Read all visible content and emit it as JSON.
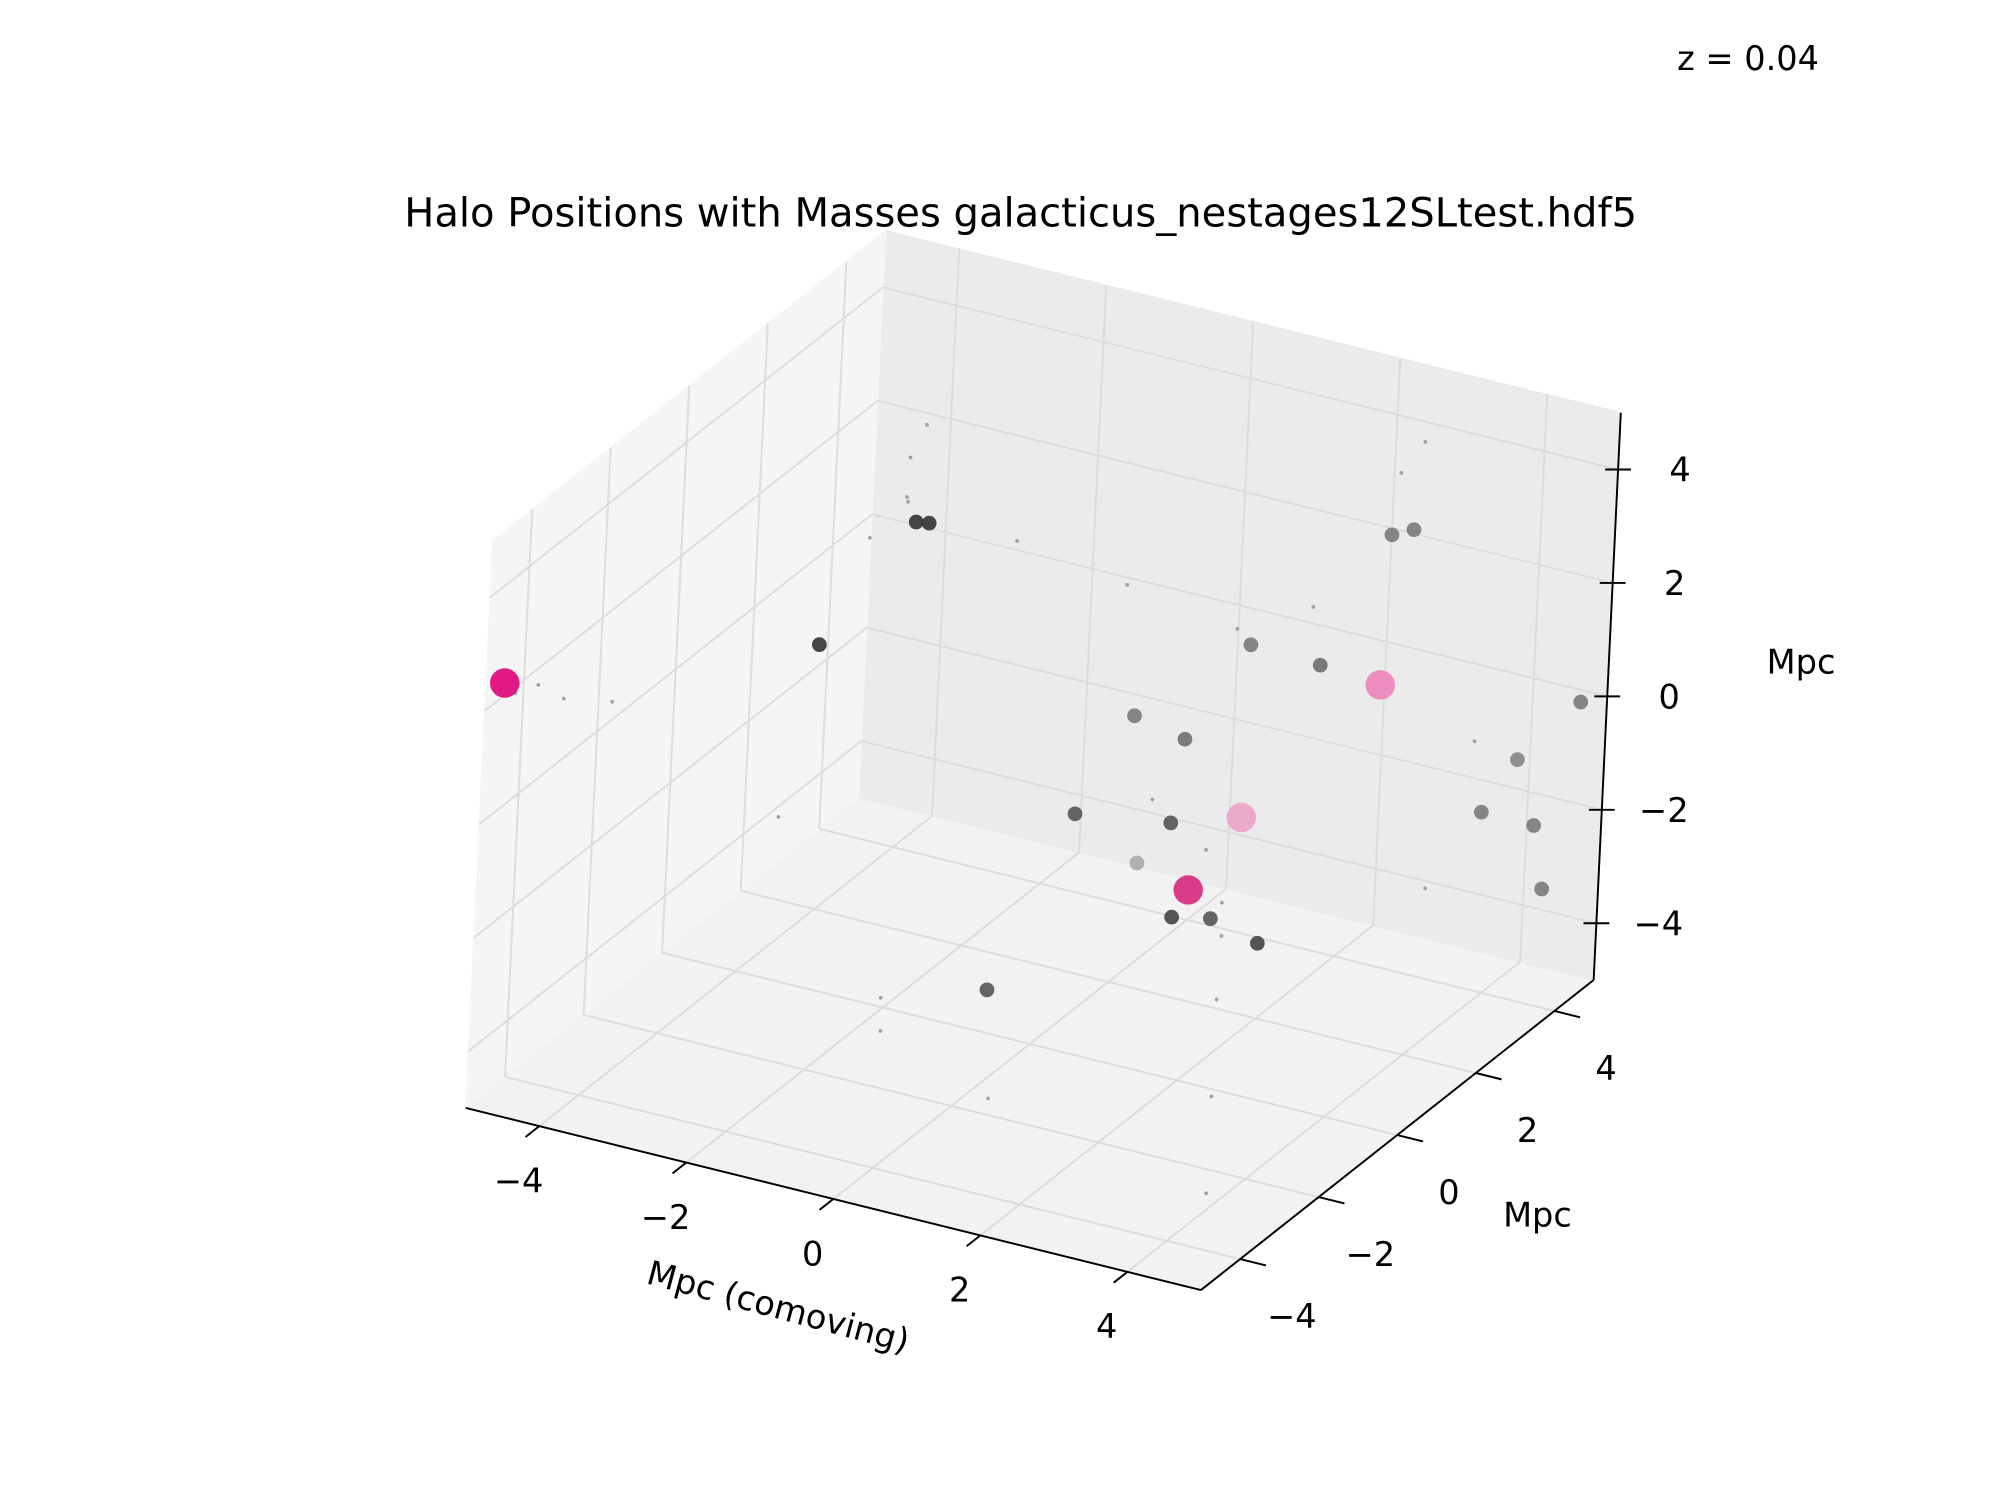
{
  "chart_data": {
    "type": "scatter3d",
    "title": "Halo Positions with Masses galacticus_nestages12SLtest.hdf5",
    "annotation": "z = 0.04",
    "xlabel": "Mpc (comoving)",
    "ylabel": "Mpc",
    "zlabel": "Mpc",
    "xlim": [
      -5,
      5
    ],
    "ylim": [
      -5,
      5
    ],
    "zlim": [
      -5,
      5
    ],
    "xticks": [
      {
        "value": -4,
        "label": "−4"
      },
      {
        "value": -2,
        "label": "−2"
      },
      0,
      2,
      4
    ],
    "yticks": [
      {
        "value": -4,
        "label": "−4"
      },
      {
        "value": -2,
        "label": "−2"
      },
      0,
      2,
      4
    ],
    "zticks": [
      {
        "value": -4,
        "label": "−4"
      },
      {
        "value": -2,
        "label": "−2"
      },
      0,
      2,
      4
    ],
    "grid": true,
    "series": [
      {
        "x": [
          -4.7,
          -4.5,
          -4.2,
          -3.8,
          -3,
          -3.2,
          -3.1,
          -2,
          -1,
          0,
          1,
          2,
          2.5,
          3,
          3.5,
          4,
          4.5,
          1.5,
          2.8,
          3,
          -2,
          0,
          -4,
          1,
          3.5,
          -1,
          2,
          4.2,
          2.8,
          2.96,
          1.35,
          1.62,
          0.36,
          1.19,
          4.8,
          4.9,
          4.5,
          4.5,
          4.7,
          1.03,
          2.14,
          1.6,
          2.67,
          3.09,
          3.9,
          0.28,
          -3.01,
          -2.86,
          -3.12,
          2.5,
          2.8,
          3.2,
          -4.8
        ],
        "y": [
          -4.8,
          -4.6,
          -4.5,
          -4,
          2,
          2.4,
          2.6,
          0,
          1,
          2,
          3,
          -1,
          -0.5,
          -1,
          -2,
          -3,
          -4,
          4,
          3.6,
          3.8,
          -3,
          -4,
          3,
          -3,
          4.5,
          -2,
          1,
          2,
          3.43,
          3.69,
          2.69,
          4.02,
          1.65,
          1.38,
          4.7,
          2.9,
          2.8,
          4.2,
          4.1,
          -1.12,
          -0.76,
          -0.54,
          -1.66,
          -1.46,
          -1.78,
          -1.75,
          2.26,
          2.31,
          0.07,
          3.9,
          -0.2,
          -2.3,
          -4.9
        ],
        "z": [
          2.3,
          2.4,
          2.2,
          2,
          2.5,
          3,
          3.5,
          4,
          3,
          2,
          1,
          0.5,
          -0.5,
          -1,
          -2,
          -3,
          -4,
          1,
          4,
          4.5,
          0,
          -2,
          1,
          -4,
          -1,
          -4,
          -3,
          -2,
          3,
          3,
          1,
          0,
          0,
          0,
          0,
          0,
          -1,
          -2,
          -3,
          0,
          0,
          -1,
          -1,
          -1,
          -1,
          -3,
          2,
          2,
          1,
          0,
          0,
          0,
          2.5
        ],
        "sizes": [
          3,
          3,
          3,
          3,
          3,
          3,
          3,
          3,
          3,
          3,
          3,
          3,
          3,
          3,
          3,
          3,
          3,
          3,
          3,
          3,
          3,
          3,
          3,
          3,
          3,
          3,
          3,
          3,
          45,
          45,
          45,
          45,
          45,
          45,
          45,
          45,
          45,
          45,
          45,
          45,
          45,
          45,
          45,
          45,
          45,
          45,
          45,
          45,
          45,
          180,
          180,
          180,
          180
        ],
        "colors": [
          "#999999",
          "#999999",
          "#999999",
          "#999999",
          "#999999",
          "#999999",
          "#999999",
          "#999999",
          "#999999",
          "#999999",
          "#999999",
          "#999999",
          "#999999",
          "#999999",
          "#999999",
          "#999999",
          "#999999",
          "#999999",
          "#999999",
          "#999999",
          "#999999",
          "#999999",
          "#999999",
          "#999999",
          "#999999",
          "#999999",
          "#999999",
          "#999999",
          "#7a7a7a",
          "#7a7a7a",
          "#7a7a7a",
          "#6e6e6e",
          "#7a7a7a",
          "#6e6e6e",
          "#7a7a7a",
          "#858585",
          "#7a7a7a",
          "#7a7a7a",
          "#7a7a7a",
          "#555555",
          "#555555",
          "#aaaaaa",
          "#444444",
          "#555555",
          "#444444",
          "#555555",
          "#333333",
          "#333333",
          "#333333",
          "#ec82ba",
          "#eca2c9",
          "#d6297d",
          "#e0007a"
        ]
      }
    ]
  }
}
